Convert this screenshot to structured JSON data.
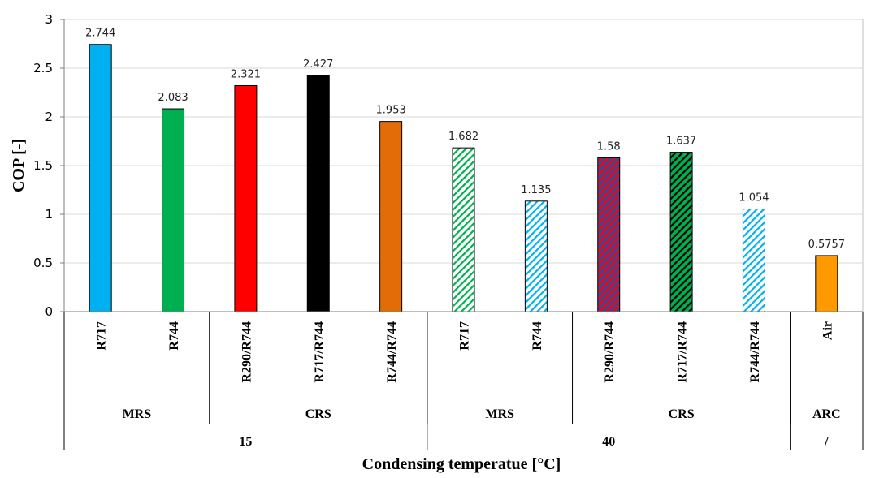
{
  "chart_data": {
    "type": "bar",
    "title": "",
    "ylabel": "COP [-]",
    "xlabel": "Condensing temperatue [°C]",
    "ylim": [
      0,
      3
    ],
    "yticks": [
      "0",
      "0.5",
      "1",
      "1.5",
      "2",
      "2.5",
      "3"
    ],
    "grid": true,
    "bars": [
      {
        "label": "R717",
        "value": 2.744,
        "value_label": "2.744",
        "color": "#00b0f0",
        "pattern": "solid"
      },
      {
        "label": "R744",
        "value": 2.083,
        "value_label": "2.083",
        "color": "#00b050",
        "pattern": "solid"
      },
      {
        "label": "R290/R744",
        "value": 2.321,
        "value_label": "2.321",
        "color": "#ff0000",
        "pattern": "solid"
      },
      {
        "label": "R717/R744",
        "value": 2.427,
        "value_label": "2.427",
        "color": "#000000",
        "pattern": "solid"
      },
      {
        "label": "R744/R744",
        "value": 1.953,
        "value_label": "1.953",
        "color": "#e36c09",
        "pattern": "solid"
      },
      {
        "label": "R717",
        "value": 1.682,
        "value_label": "1.682",
        "color": "#00b050",
        "pattern": "hatch"
      },
      {
        "label": "R744",
        "value": 1.135,
        "value_label": "1.135",
        "color": "#00b0f0",
        "pattern": "hatch"
      },
      {
        "label": "R290/R744",
        "value": 1.58,
        "value_label": "1.58",
        "color": "#ff0000",
        "pattern": "hatch-dark",
        "hatch_bg": "#4b3f8f"
      },
      {
        "label": "R717/R744",
        "value": 1.637,
        "value_label": "1.637",
        "color": "#000000",
        "pattern": "hatch-dark",
        "hatch_bg": "#00b050"
      },
      {
        "label": "R744/R744",
        "value": 1.054,
        "value_label": "1.054",
        "color": "#00b0f0",
        "pattern": "hatch"
      },
      {
        "label": "Air",
        "value": 0.5757,
        "value_label": "0.5757",
        "color": "#ff9900",
        "pattern": "solid"
      }
    ],
    "groups": [
      {
        "label": "MRS",
        "start": 0,
        "end": 1
      },
      {
        "label": "CRS",
        "start": 2,
        "end": 4
      },
      {
        "label": "MRS",
        "start": 5,
        "end": 6
      },
      {
        "label": "CRS",
        "start": 7,
        "end": 9
      },
      {
        "label": "ARC",
        "start": 10,
        "end": 10
      }
    ],
    "super_groups": [
      {
        "label": "15",
        "start": 0,
        "end": 4
      },
      {
        "label": "40",
        "start": 5,
        "end": 9
      },
      {
        "label": "/",
        "start": 10,
        "end": 10
      }
    ]
  }
}
